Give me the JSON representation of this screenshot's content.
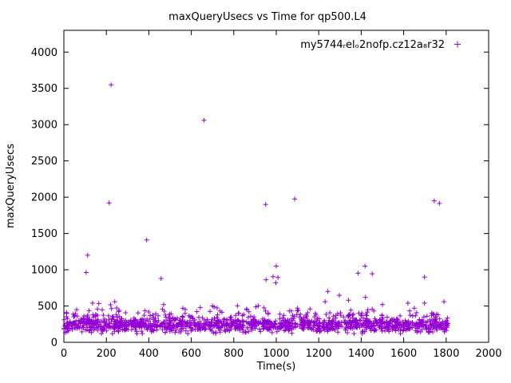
{
  "figure": {
    "background": "#ffffff",
    "axis_color": "#000000"
  },
  "chart_data": {
    "type": "scatter",
    "title": "maxQueryUsecs vs Time for qp500.L4",
    "xlabel": "Time(s)",
    "ylabel": "maxQueryUsecs",
    "xlim": [
      0,
      2000
    ],
    "ylim": [
      0,
      4300
    ],
    "xticks": [
      0,
      200,
      400,
      600,
      800,
      1000,
      1200,
      1400,
      1600,
      1800,
      2000
    ],
    "yticks": [
      0,
      500,
      1000,
      1500,
      2000,
      2500,
      3000,
      3500,
      4000
    ],
    "grid": false,
    "legend_position": "top-right-inside",
    "series": [
      {
        "name": "my5744_rel_o2nofp.cz12a_8r32",
        "display_name": "my5744ᵣelₒ2nofp.cz12a₈r32",
        "marker": "+",
        "color": "#9400d3",
        "outliers": [
          [
            222,
            3550
          ],
          [
            660,
            3060
          ],
          [
            213,
            1920
          ],
          [
            950,
            1900
          ],
          [
            1087,
            1975
          ],
          [
            1744,
            1950
          ],
          [
            1768,
            1915
          ],
          [
            390,
            1410
          ],
          [
            112,
            1200
          ],
          [
            105,
            962
          ],
          [
            1000,
            1050
          ],
          [
            1418,
            1050
          ],
          [
            458,
            880
          ],
          [
            985,
            905
          ],
          [
            1008,
            893
          ],
          [
            1385,
            952
          ],
          [
            1452,
            945
          ],
          [
            1698,
            900
          ],
          [
            1243,
            700
          ],
          [
            1297,
            648
          ],
          [
            952,
            862
          ],
          [
            998,
            820
          ],
          [
            135,
            540
          ],
          [
            240,
            560
          ],
          [
            470,
            520
          ],
          [
            700,
            500
          ],
          [
            1230,
            560
          ],
          [
            1340,
            580
          ],
          [
            1500,
            520
          ],
          [
            1620,
            540
          ],
          [
            1790,
            560
          ],
          [
            260,
            440
          ],
          [
            1100,
            470
          ],
          [
            860,
            460
          ],
          [
            560,
            470
          ],
          [
            1650,
            470
          ],
          [
            60,
            450
          ],
          [
            1420,
            620
          ]
        ],
        "band": {
          "x_min": 0,
          "x_max": 1810,
          "count": 1400,
          "y_core_mean": 238,
          "y_core_sd": 48,
          "y_wide_mean": 295,
          "y_wide_sd": 65,
          "y_min": 120,
          "y_max": 540,
          "tail_fraction": 0.05,
          "seed": 1337
        }
      }
    ]
  }
}
